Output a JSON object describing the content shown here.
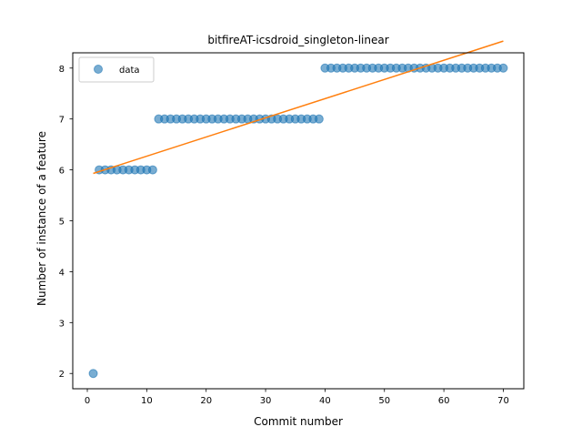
{
  "chart_data": {
    "type": "scatter",
    "title": "bitfireAT-icsdroid_singleton-linear",
    "xlabel": "Commit number",
    "ylabel": "Number of instance of a feature",
    "xlim": [
      -2.45,
      73.45
    ],
    "ylim": [
      1.7,
      8.3
    ],
    "xticks": [
      0,
      10,
      20,
      30,
      40,
      50,
      60,
      70
    ],
    "yticks": [
      2,
      3,
      4,
      5,
      6,
      7,
      8
    ],
    "grid": false,
    "legend_position": "upper-left",
    "series": [
      {
        "name": "data",
        "kind": "scatter",
        "color": "#1f77b4",
        "x": [
          1,
          2,
          3,
          4,
          5,
          6,
          7,
          8,
          9,
          10,
          11,
          12,
          13,
          14,
          15,
          16,
          17,
          18,
          19,
          20,
          21,
          22,
          23,
          24,
          25,
          26,
          27,
          28,
          29,
          30,
          31,
          32,
          33,
          34,
          35,
          36,
          37,
          38,
          39,
          40,
          41,
          42,
          43,
          44,
          45,
          46,
          47,
          48,
          49,
          50,
          51,
          52,
          53,
          54,
          55,
          56,
          57,
          58,
          59,
          60,
          61,
          62,
          63,
          64,
          65,
          66,
          67,
          68,
          69,
          70
        ],
        "y": [
          2,
          6,
          6,
          6,
          6,
          6,
          6,
          6,
          6,
          6,
          6,
          7,
          7,
          7,
          7,
          7,
          7,
          7,
          7,
          7,
          7,
          7,
          7,
          7,
          7,
          7,
          7,
          7,
          7,
          7,
          7,
          7,
          7,
          7,
          7,
          7,
          7,
          7,
          7,
          8,
          8,
          8,
          8,
          8,
          8,
          8,
          8,
          8,
          8,
          8,
          8,
          8,
          8,
          8,
          8,
          8,
          8,
          8,
          8,
          8,
          8,
          8,
          8,
          8,
          8,
          8,
          8,
          8,
          8,
          8
        ]
      },
      {
        "kind": "line",
        "color": "#ff7f0e",
        "x": [
          1,
          70
        ],
        "y": [
          5.93,
          8.53
        ]
      }
    ]
  }
}
